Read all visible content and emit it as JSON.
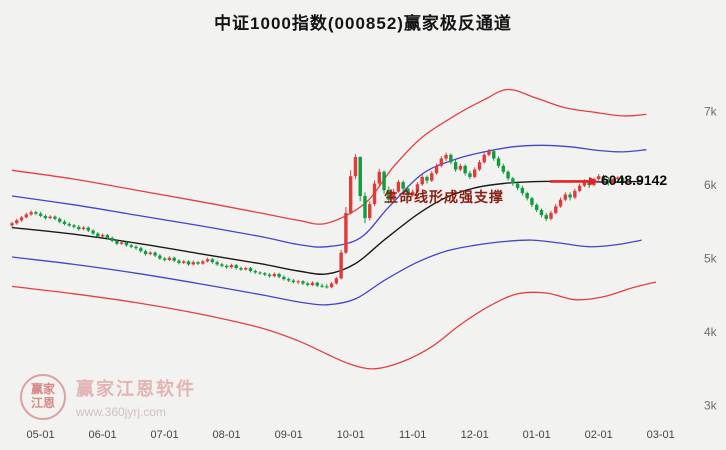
{
  "title": "中证1000指数(000852)赢家极反通道",
  "annotation": {
    "support_text": "生命线形成强支撑",
    "price_label": "6048.9142"
  },
  "watermark": {
    "brand": "赢家江恩软件",
    "url": "www.360jyrj.com",
    "logo_top": "赢家",
    "logo_bottom": "江恩"
  },
  "colors": {
    "candle_up": "#e03b3b",
    "candle_down": "#109b3c",
    "arrow": "#e22222",
    "line_red": "#e44040",
    "line_blue": "#4444cc",
    "line_black": "#1a1a1a"
  },
  "chart_data": {
    "type": "candlestick",
    "title": "中证1000指数(000852)赢家极反通道",
    "symbol": "000852",
    "index_name": "中证1000指数",
    "channel_name": "赢家极反通道",
    "latest_price": 6048.9142,
    "x_labels": [
      "05-01",
      "06-01",
      "07-01",
      "08-01",
      "09-01",
      "10-01",
      "11-01",
      "12-01",
      "01-01",
      "02-01",
      "03-01"
    ],
    "y_axis": {
      "ticks": [
        {
          "label": "7k",
          "value": 7000
        },
        {
          "label": "6k",
          "value": 6000
        },
        {
          "label": "5k",
          "value": 5000
        },
        {
          "label": "4k",
          "value": 4000
        },
        {
          "label": "3k",
          "value": 3000
        }
      ],
      "range": [
        2700,
        8100
      ]
    },
    "candles_ohlc": [
      [
        5450,
        5500,
        5430,
        5480
      ],
      [
        5480,
        5540,
        5460,
        5520
      ],
      [
        5520,
        5580,
        5500,
        5560
      ],
      [
        5560,
        5625,
        5545,
        5600
      ],
      [
        5600,
        5655,
        5580,
        5630
      ],
      [
        5630,
        5650,
        5590,
        5610
      ],
      [
        5610,
        5635,
        5560,
        5580
      ],
      [
        5580,
        5600,
        5530,
        5550
      ],
      [
        5550,
        5590,
        5535,
        5570
      ],
      [
        5570,
        5585,
        5520,
        5540
      ],
      [
        5540,
        5560,
        5480,
        5500
      ],
      [
        5500,
        5525,
        5450,
        5470
      ],
      [
        5470,
        5495,
        5430,
        5450
      ],
      [
        5450,
        5470,
        5410,
        5430
      ],
      [
        5430,
        5455,
        5380,
        5400
      ],
      [
        5400,
        5440,
        5385,
        5420
      ],
      [
        5420,
        5435,
        5360,
        5380
      ],
      [
        5380,
        5400,
        5320,
        5340
      ],
      [
        5340,
        5360,
        5280,
        5300
      ],
      [
        5300,
        5340,
        5285,
        5320
      ],
      [
        5320,
        5335,
        5260,
        5280
      ],
      [
        5280,
        5300,
        5220,
        5240
      ],
      [
        5240,
        5260,
        5180,
        5200
      ],
      [
        5200,
        5240,
        5185,
        5220
      ],
      [
        5220,
        5235,
        5160,
        5180
      ],
      [
        5180,
        5200,
        5140,
        5160
      ],
      [
        5160,
        5180,
        5120,
        5140
      ],
      [
        5140,
        5160,
        5080,
        5100
      ],
      [
        5100,
        5120,
        5040,
        5060
      ],
      [
        5060,
        5100,
        5045,
        5080
      ],
      [
        5080,
        5095,
        5020,
        5040
      ],
      [
        5040,
        5060,
        4980,
        5000
      ],
      [
        5000,
        5020,
        4960,
        4980
      ],
      [
        4980,
        5030,
        4965,
        5010
      ],
      [
        5010,
        5025,
        4950,
        4970
      ],
      [
        4970,
        4990,
        4920,
        4940
      ],
      [
        4940,
        4980,
        4925,
        4960
      ],
      [
        4960,
        4975,
        4900,
        4920
      ],
      [
        4920,
        4970,
        4905,
        4950
      ],
      [
        4950,
        4965,
        4910,
        4930
      ],
      [
        4930,
        4980,
        4915,
        4960
      ],
      [
        4960,
        5010,
        4945,
        4990
      ],
      [
        4990,
        5005,
        4930,
        4950
      ],
      [
        4950,
        4970,
        4900,
        4920
      ],
      [
        4920,
        4940,
        4880,
        4900
      ],
      [
        4900,
        4920,
        4860,
        4880
      ],
      [
        4880,
        4930,
        4865,
        4910
      ],
      [
        4910,
        4925,
        4850,
        4870
      ],
      [
        4870,
        4890,
        4830,
        4850
      ],
      [
        4850,
        4890,
        4835,
        4870
      ],
      [
        4870,
        4885,
        4810,
        4830
      ],
      [
        4830,
        4850,
        4790,
        4810
      ],
      [
        4810,
        4825,
        4780,
        4800
      ],
      [
        4800,
        4815,
        4760,
        4780
      ],
      [
        4780,
        4800,
        4740,
        4760
      ],
      [
        4760,
        4810,
        4745,
        4790
      ],
      [
        4790,
        4805,
        4730,
        4750
      ],
      [
        4750,
        4770,
        4700,
        4720
      ],
      [
        4720,
        4740,
        4680,
        4700
      ],
      [
        4700,
        4720,
        4660,
        4680
      ],
      [
        4680,
        4710,
        4650,
        4690
      ],
      [
        4690,
        4705,
        4640,
        4660
      ],
      [
        4660,
        4680,
        4620,
        4640
      ],
      [
        4640,
        4690,
        4625,
        4670
      ],
      [
        4670,
        4685,
        4610,
        4630
      ],
      [
        4630,
        4660,
        4600,
        4620
      ],
      [
        4620,
        4650,
        4590,
        4610
      ],
      [
        4610,
        4680,
        4595,
        4660
      ],
      [
        4660,
        4750,
        4645,
        4730
      ],
      [
        4730,
        5120,
        4715,
        5080
      ],
      [
        5080,
        5700,
        5060,
        5620
      ],
      [
        5620,
        6200,
        5600,
        6120
      ],
      [
        6120,
        6420,
        6080,
        6380
      ],
      [
        6380,
        6390,
        5780,
        5850
      ],
      [
        5850,
        5900,
        5480,
        5550
      ],
      [
        5550,
        5780,
        5520,
        5740
      ],
      [
        5740,
        6060,
        5710,
        6020
      ],
      [
        6020,
        6220,
        5980,
        6180
      ],
      [
        6180,
        6200,
        5880,
        5930
      ],
      [
        5930,
        5980,
        5750,
        5800
      ],
      [
        5800,
        5950,
        5780,
        5910
      ],
      [
        5910,
        6070,
        5890,
        6040
      ],
      [
        6040,
        6060,
        5900,
        5950
      ],
      [
        5950,
        5990,
        5820,
        5860
      ],
      [
        5860,
        5940,
        5840,
        5910
      ],
      [
        5910,
        6040,
        5890,
        6010
      ],
      [
        6010,
        6140,
        5990,
        6110
      ],
      [
        6110,
        6130,
        6020,
        6060
      ],
      [
        6060,
        6190,
        6040,
        6160
      ],
      [
        6160,
        6290,
        6140,
        6260
      ],
      [
        6260,
        6390,
        6240,
        6360
      ],
      [
        6360,
        6440,
        6330,
        6410
      ],
      [
        6410,
        6430,
        6280,
        6310
      ],
      [
        6310,
        6340,
        6180,
        6210
      ],
      [
        6210,
        6290,
        6190,
        6260
      ],
      [
        6260,
        6280,
        6130,
        6160
      ],
      [
        6160,
        6190,
        6080,
        6110
      ],
      [
        6110,
        6240,
        6090,
        6210
      ],
      [
        6210,
        6340,
        6190,
        6310
      ],
      [
        6310,
        6440,
        6290,
        6410
      ],
      [
        6410,
        6490,
        6390,
        6460
      ],
      [
        6460,
        6480,
        6330,
        6360
      ],
      [
        6360,
        6390,
        6230,
        6260
      ],
      [
        6260,
        6290,
        6150,
        6180
      ],
      [
        6180,
        6200,
        6060,
        6090
      ],
      [
        6090,
        6110,
        5990,
        6020
      ],
      [
        6020,
        6050,
        5930,
        5960
      ],
      [
        5960,
        5990,
        5860,
        5890
      ],
      [
        5890,
        5910,
        5790,
        5820
      ],
      [
        5820,
        5840,
        5700,
        5730
      ],
      [
        5730,
        5750,
        5630,
        5660
      ],
      [
        5660,
        5680,
        5560,
        5590
      ],
      [
        5590,
        5620,
        5510,
        5540
      ],
      [
        5540,
        5650,
        5520,
        5620
      ],
      [
        5620,
        5740,
        5600,
        5710
      ],
      [
        5710,
        5830,
        5690,
        5800
      ],
      [
        5800,
        5900,
        5780,
        5870
      ],
      [
        5870,
        5900,
        5790,
        5830
      ],
      [
        5830,
        5950,
        5810,
        5920
      ],
      [
        5920,
        6020,
        5900,
        5990
      ],
      [
        5990,
        6080,
        5970,
        6050
      ],
      [
        6050,
        6070,
        5960,
        6000
      ],
      [
        6000,
        6100,
        5980,
        6080
      ],
      [
        6080,
        6150,
        6060,
        6120
      ],
      [
        6120,
        6140,
        6030,
        6060
      ],
      [
        6060,
        6110,
        5990,
        6030
      ],
      [
        6030,
        6100,
        6010,
        6080
      ],
      [
        6080,
        6120,
        6050,
        6100
      ],
      [
        6100,
        6110,
        6000,
        6030
      ],
      [
        6030,
        6070,
        6000,
        6048.91
      ]
    ],
    "channel_lines": [
      {
        "name": "outer-upper-red-line",
        "color": "#e44040",
        "width": 1.3,
        "points": [
          [
            0,
            6200
          ],
          [
            13,
            6080
          ],
          [
            26,
            5930
          ],
          [
            39,
            5780
          ],
          [
            52,
            5620
          ],
          [
            60,
            5520
          ],
          [
            66,
            5480
          ],
          [
            74,
            5750
          ],
          [
            80,
            6250
          ],
          [
            86,
            6650
          ],
          [
            93,
            6950
          ],
          [
            99,
            7160
          ],
          [
            104,
            7300
          ],
          [
            110,
            7180
          ],
          [
            116,
            7050
          ],
          [
            122,
            6990
          ],
          [
            128,
            6940
          ],
          [
            133,
            6960
          ]
        ]
      },
      {
        "name": "inner-upper-blue-line",
        "color": "#4444cc",
        "width": 1.3,
        "points": [
          [
            0,
            5850
          ],
          [
            13,
            5730
          ],
          [
            26,
            5590
          ],
          [
            39,
            5450
          ],
          [
            52,
            5300
          ],
          [
            60,
            5190
          ],
          [
            66,
            5160
          ],
          [
            73,
            5280
          ],
          [
            79,
            5700
          ],
          [
            86,
            6150
          ],
          [
            93,
            6350
          ],
          [
            99,
            6450
          ],
          [
            105,
            6520
          ],
          [
            111,
            6540
          ],
          [
            117,
            6520
          ],
          [
            123,
            6470
          ],
          [
            128,
            6450
          ],
          [
            133,
            6480
          ]
        ]
      },
      {
        "name": "life-line-black",
        "color": "#1a1a1a",
        "width": 1.4,
        "points": [
          [
            0,
            5420
          ],
          [
            13,
            5330
          ],
          [
            26,
            5210
          ],
          [
            39,
            5070
          ],
          [
            52,
            4930
          ],
          [
            60,
            4830
          ],
          [
            66,
            4790
          ],
          [
            72,
            4930
          ],
          [
            78,
            5250
          ],
          [
            85,
            5600
          ],
          [
            91,
            5830
          ],
          [
            97,
            5960
          ],
          [
            103,
            6020
          ],
          [
            109,
            6045
          ],
          [
            115,
            6050
          ],
          [
            121,
            6045
          ],
          [
            126,
            6040
          ],
          [
            132,
            6049
          ]
        ]
      },
      {
        "name": "inner-lower-blue-line",
        "color": "#4444cc",
        "width": 1.3,
        "points": [
          [
            0,
            5020
          ],
          [
            13,
            4920
          ],
          [
            26,
            4800
          ],
          [
            39,
            4660
          ],
          [
            52,
            4510
          ],
          [
            60,
            4410
          ],
          [
            66,
            4370
          ],
          [
            72,
            4450
          ],
          [
            78,
            4700
          ],
          [
            85,
            4950
          ],
          [
            91,
            5100
          ],
          [
            97,
            5180
          ],
          [
            103,
            5230
          ],
          [
            109,
            5250
          ],
          [
            115,
            5210
          ],
          [
            121,
            5160
          ],
          [
            127,
            5190
          ],
          [
            132,
            5250
          ]
        ]
      },
      {
        "name": "outer-lower-red-line",
        "color": "#e44040",
        "width": 1.3,
        "points": [
          [
            0,
            4620
          ],
          [
            13,
            4520
          ],
          [
            26,
            4400
          ],
          [
            39,
            4250
          ],
          [
            52,
            4060
          ],
          [
            60,
            3880
          ],
          [
            66,
            3700
          ],
          [
            71,
            3560
          ],
          [
            76,
            3500
          ],
          [
            82,
            3600
          ],
          [
            88,
            3800
          ],
          [
            94,
            4100
          ],
          [
            100,
            4350
          ],
          [
            106,
            4520
          ],
          [
            112,
            4530
          ],
          [
            118,
            4440
          ],
          [
            124,
            4480
          ],
          [
            130,
            4600
          ],
          [
            135,
            4680
          ]
        ]
      }
    ]
  }
}
